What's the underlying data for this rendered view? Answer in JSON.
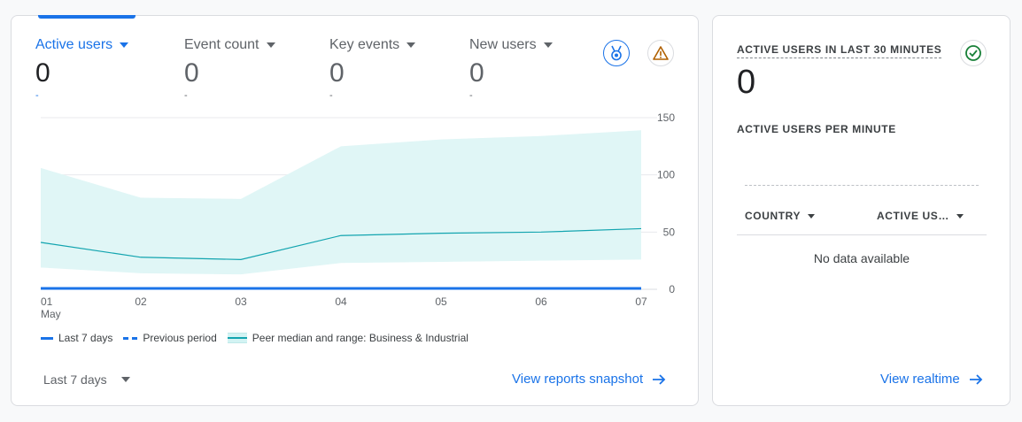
{
  "metrics": [
    {
      "label": "Active users",
      "value": "0",
      "delta": "-"
    },
    {
      "label": "Event count",
      "value": "0",
      "delta": "-"
    },
    {
      "label": "Key events",
      "value": "0",
      "delta": "-"
    },
    {
      "label": "New users",
      "value": "0",
      "delta": "-"
    }
  ],
  "icons": {
    "insight": "medal-icon",
    "warning": "warning-triangle-icon"
  },
  "chart_data": {
    "type": "line",
    "x": [
      "01",
      "02",
      "03",
      "04",
      "05",
      "06",
      "07"
    ],
    "x_sublabel": "May",
    "y_ticks": [
      "150",
      "100",
      "50",
      "0"
    ],
    "ylim": [
      0,
      150
    ],
    "grid": true,
    "series": [
      {
        "name": "Last 7 days",
        "values": [
          0,
          0,
          0,
          0,
          0,
          0,
          0
        ],
        "color": "#1a73e8"
      },
      {
        "name": "Previous period",
        "values": [
          0,
          0,
          0,
          0,
          0,
          0,
          0
        ],
        "color": "#1a73e8"
      },
      {
        "name": "Peer median and range: Business & Industrial",
        "median": [
          41,
          28,
          26,
          47,
          49,
          50,
          53
        ],
        "low": [
          19,
          14,
          13,
          23,
          24,
          25,
          26
        ],
        "high": [
          106,
          80,
          79,
          125,
          131,
          134,
          139
        ],
        "color": "#12a4af",
        "fill": "#e0f6f6"
      }
    ]
  },
  "legend": [
    "Last 7 days",
    "Previous period",
    "Peer median and range: Business & Industrial"
  ],
  "date_range": "Last 7 days",
  "view_snapshot": "View reports snapshot",
  "realtime": {
    "title": "ACTIVE USERS IN LAST 30 MINUTES",
    "value": "0",
    "subtitle": "ACTIVE USERS PER MINUTE",
    "col_country": "COUNTRY",
    "col_active": "ACTIVE US…",
    "no_data": "No data available",
    "view_realtime": "View realtime"
  }
}
